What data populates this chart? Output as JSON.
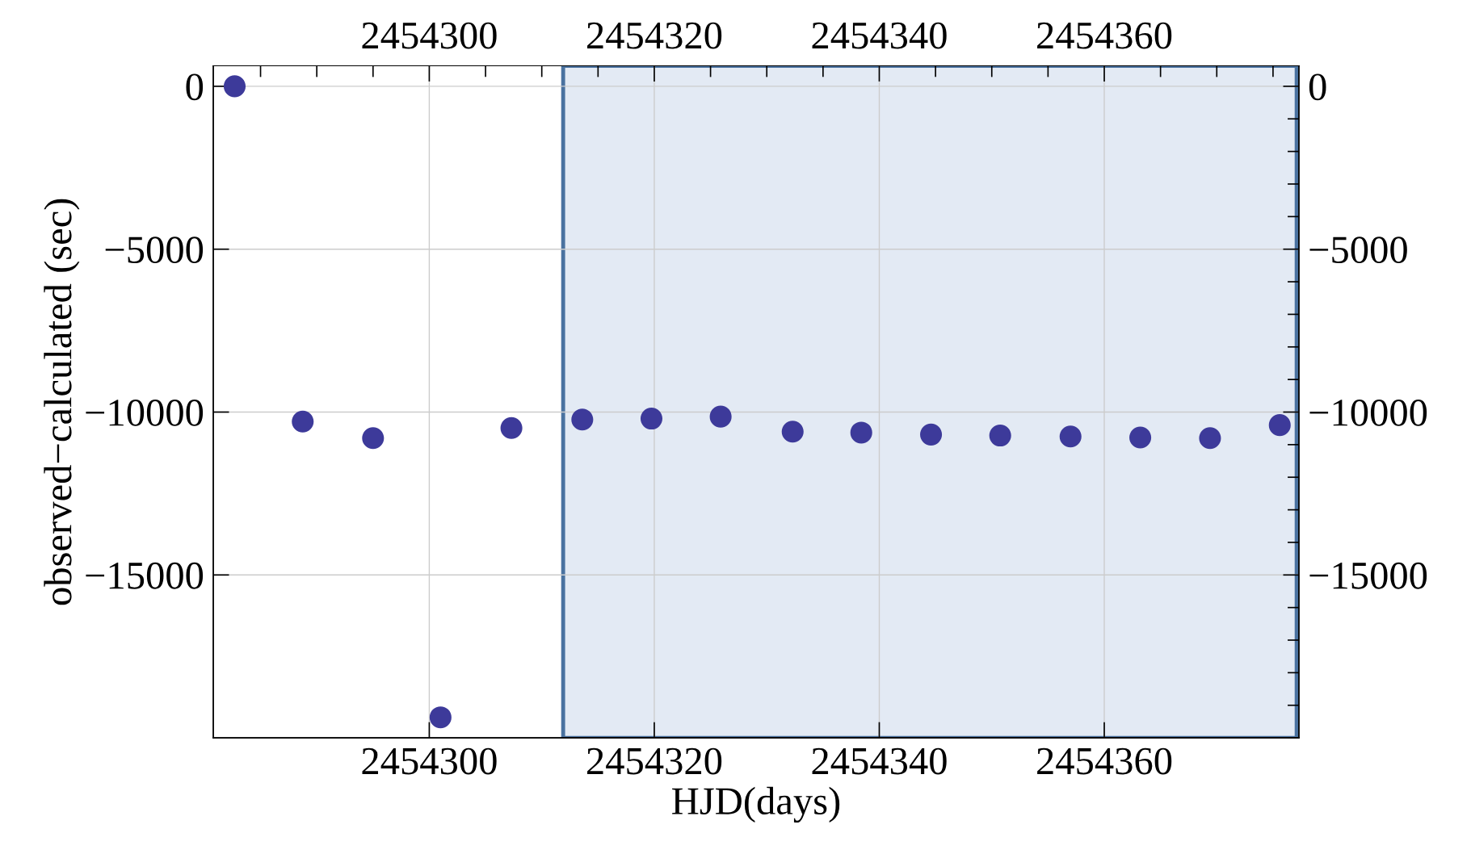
{
  "chart_data": {
    "type": "scatter",
    "xlabel": "HJD(days)",
    "ylabel": "observed−calculated (sec)",
    "x": [
      2454282.7,
      2454288.75,
      2454295.0,
      2454301.0,
      2454307.3,
      2454313.6,
      2454319.75,
      2454325.9,
      2454332.3,
      2454338.4,
      2454344.6,
      2454350.75,
      2454357.0,
      2454363.2,
      2454369.4,
      2454375.6
    ],
    "series": [
      {
        "color": "#3d3a9a",
        "values": [
          0,
          -10290,
          -10800,
          -19370,
          -10490,
          -10230,
          -10200,
          -10140,
          -10600,
          -10630,
          -10690,
          -10720,
          -10750,
          -10780,
          -10800,
          -10400
        ]
      }
    ],
    "xlim": [
      2454280.8,
      2454377.3
    ],
    "ylim": [
      -20000,
      630
    ],
    "xticks": [
      2454300,
      2454320,
      2454340,
      2454360
    ],
    "x2lim": [
      2454280.8,
      2454377.3
    ],
    "x2ticks": [
      2454300,
      2454320,
      2454340,
      2454360
    ],
    "yticks": [
      {
        "value": 0,
        "label": "0"
      },
      {
        "value": -5000,
        "label": "−5000"
      },
      {
        "value": -10000,
        "label": "−10000"
      },
      {
        "value": -15000,
        "label": "−15000"
      }
    ],
    "y2lim": [
      -20000,
      630
    ],
    "y2ticks": [
      {
        "value": 0,
        "label": "0"
      },
      {
        "value": -5000,
        "label": "−5000"
      },
      {
        "value": -10000,
        "label": "−10000"
      },
      {
        "value": -15000,
        "label": "−15000"
      }
    ],
    "bands": [
      {
        "axis": "x",
        "from": 2454311.9,
        "to": 2454377.1,
        "color": "#e3eaf4"
      }
    ],
    "grid": true,
    "marker": "circle",
    "legend": false
  }
}
